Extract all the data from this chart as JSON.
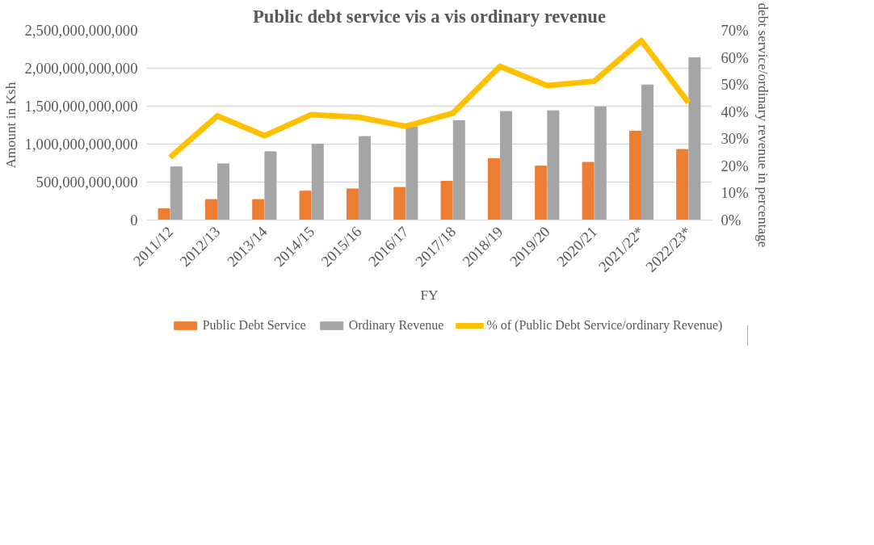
{
  "chart_data": {
    "type": "bar",
    "title": "Public debt service vis a vis ordinary revenue",
    "xlabel": "FY",
    "ylabel": "Amount in Ksh",
    "y2label": "debt service/ordinary revenue in percentage",
    "categories": [
      "2011/12",
      "2012/13",
      "2013/14",
      "2014/15",
      "2015/16",
      "2016/17",
      "2017/18",
      "2018/19",
      "2019/20",
      "2020/21",
      "2021/22*",
      "2022/23*"
    ],
    "series": [
      {
        "name": "Public Debt Service",
        "color": "#ed7d31",
        "values": [
          150000000000,
          270000000000,
          270000000000,
          380000000000,
          410000000000,
          430000000000,
          510000000000,
          810000000000,
          710000000000,
          760000000000,
          1170000000000,
          930000000000
        ]
      },
      {
        "name": "Ordinary Revenue",
        "color": "#a5a5a5",
        "values": [
          700000000000,
          740000000000,
          900000000000,
          1000000000000,
          1100000000000,
          1230000000000,
          1310000000000,
          1430000000000,
          1440000000000,
          1490000000000,
          1780000000000,
          2140000000000
        ]
      },
      {
        "name": "% of (Public Debt Service/ordinary Revenue)",
        "type": "line",
        "axis": "y2",
        "color": "#ffc000",
        "values": [
          23.1,
          38.4,
          31.1,
          38.9,
          37.9,
          34.6,
          39.4,
          56.7,
          49.6,
          51.2,
          66.2,
          43.3
        ]
      }
    ],
    "ylim": [
      0,
      2500000000000
    ],
    "yticks": [
      {
        "value": 0,
        "label": "0"
      },
      {
        "value": 500000000000,
        "label": "500,000,000,000"
      },
      {
        "value": 1000000000000,
        "label": "1,000,000,000,000"
      },
      {
        "value": 1500000000000,
        "label": "1,500,000,000,000"
      },
      {
        "value": 2000000000000,
        "label": "2,000,000,000,000"
      },
      {
        "value": 2500000000000,
        "label": "2,500,000,000,000"
      }
    ],
    "y2lim": [
      0,
      70
    ],
    "y2ticks": [
      {
        "value": 0,
        "label": "0%"
      },
      {
        "value": 10,
        "label": "10%"
      },
      {
        "value": 20,
        "label": "20%"
      },
      {
        "value": 30,
        "label": "30%"
      },
      {
        "value": 40,
        "label": "40%"
      },
      {
        "value": 50,
        "label": "50%"
      },
      {
        "value": 60,
        "label": "60%"
      },
      {
        "value": 70,
        "label": "70%"
      }
    ],
    "grid": "y",
    "legend": "bottom",
    "marker": "none",
    "line_style": "solid"
  }
}
